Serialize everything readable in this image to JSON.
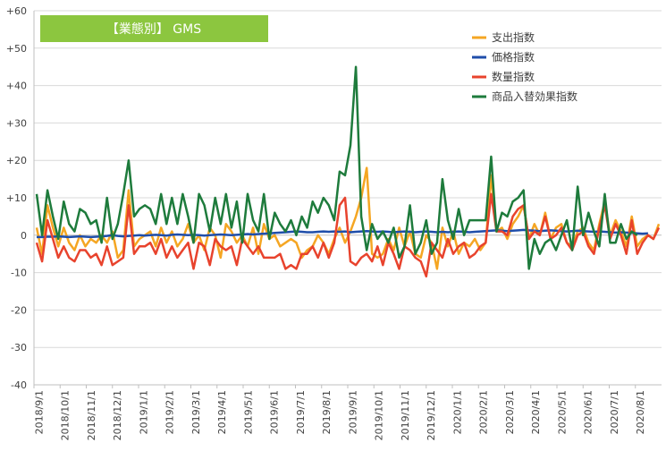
{
  "chart_data": {
    "type": "line",
    "title": "【業態別】 GMS",
    "title_bg_color": "#8CC63F",
    "ylim": [
      -40,
      60
    ],
    "ytick_step": 10,
    "y_tick_labels": [
      "-40",
      "-30",
      "-20",
      "-10",
      "0",
      "+10",
      "+20",
      "+30",
      "+40",
      "+50",
      "+60"
    ],
    "grid": "horizontal",
    "legend_position": "top-right",
    "x_tick_labels": [
      "2018/9/1",
      "2018/10/1",
      "2018/11/1",
      "2018/12/1",
      "2019/1/1",
      "2019/2/1",
      "2019/3/1",
      "2019/4/1",
      "2019/5/1",
      "2019/6/1",
      "2019/7/1",
      "2019/8/1",
      "2019/9/1",
      "2019/10/1",
      "2019/11/1",
      "2019/12/1",
      "2020/1/1",
      "2020/2/1",
      "2020/3/1",
      "2020/4/1",
      "2020/5/1",
      "2020/6/1",
      "2020/7/1",
      "2020/8/1"
    ],
    "x_weekly_offsets_note_free": true,
    "series": [
      {
        "name": "支出指数",
        "color": "#F5A623",
        "values": [
          2,
          -5,
          8,
          2,
          -3,
          2,
          -2,
          -4,
          0,
          -3,
          -1,
          -2,
          0,
          -2,
          1,
          -6,
          -4,
          12,
          -3,
          -1,
          0,
          1,
          -3,
          2,
          -2,
          1,
          -3,
          -1,
          3,
          -2,
          0,
          -4,
          2,
          0,
          -6,
          3,
          1,
          -2,
          0,
          -3,
          2,
          -5,
          3,
          -1,
          0,
          -3,
          -2,
          -1,
          -2,
          -6,
          -4,
          -3,
          0,
          -2,
          -5,
          -1,
          2,
          -2,
          1,
          5,
          10,
          18,
          -5,
          -6,
          -5,
          -1,
          -4,
          2,
          -3,
          1,
          -5,
          -6,
          0,
          -2,
          -9,
          2,
          -3,
          1,
          -5,
          -2,
          -3,
          -1,
          -4,
          -2,
          16,
          1,
          2,
          -1,
          3,
          5,
          8,
          -1,
          3,
          0,
          6,
          -1,
          2,
          3,
          -2,
          -3,
          1,
          2,
          -2,
          -4,
          3,
          9,
          0,
          4,
          1,
          -3,
          5,
          -3,
          -1,
          0,
          -1,
          3
        ]
      },
      {
        "name": "価格指数",
        "color": "#1F4EAA",
        "values": [
          -0.5,
          -0.5,
          -0.4,
          -0.4,
          -0.3,
          -0.4,
          -0.5,
          -0.4,
          -0.3,
          -0.4,
          -0.5,
          -0.4,
          -0.3,
          -0.2,
          0,
          -0.2,
          -0.3,
          -0.2,
          -0.1,
          0,
          -0.1,
          0,
          0.1,
          0,
          -0.1,
          0.1,
          0.2,
          0.1,
          0,
          0.1,
          0,
          -0.1,
          0,
          0.1,
          0.2,
          0.1,
          0,
          0.1,
          0.2,
          0.3,
          0.2,
          0.3,
          0.4,
          0.5,
          0.6,
          0.7,
          0.8,
          0.9,
          1,
          0.9,
          0.8,
          0.8,
          0.9,
          1,
          0.9,
          1,
          0.9,
          1,
          0.8,
          0.9,
          1,
          1.1,
          1,
          0.9,
          1,
          0.9,
          0.8,
          0.9,
          1,
          0.9,
          0.8,
          0.9,
          1,
          0.9,
          0.8,
          0.9,
          0.8,
          0.9,
          1,
          0.9,
          0.8,
          0.9,
          1,
          1.1,
          1.2,
          1.3,
          1.2,
          1.1,
          1.2,
          1.3,
          1.4,
          1.3,
          1.2,
          1.1,
          1.2,
          1.3,
          1.2,
          1.1,
          1,
          1.1,
          1.2,
          1.1,
          1,
          0.9,
          1,
          0.9,
          0.8,
          0.7,
          0.8,
          0.7,
          0.6,
          0.5,
          0.4,
          0.5
        ]
      },
      {
        "name": "数量指数",
        "color": "#E8432D",
        "values": [
          -2,
          -7,
          4,
          -1,
          -6,
          -3,
          -6,
          -7,
          -4,
          -4,
          -6,
          -5,
          -8,
          -3,
          -8,
          -7,
          -6,
          8,
          -5,
          -3,
          -3,
          -2,
          -5,
          -1,
          -6,
          -3,
          -6,
          -4,
          -2,
          -9,
          -2,
          -3,
          -8,
          -1,
          -3,
          -4,
          -3,
          -8,
          -1,
          -3,
          -5,
          -3,
          -6,
          -6,
          -6,
          -5,
          -9,
          -8,
          -9,
          -5,
          -5,
          -3,
          -6,
          -2,
          -6,
          -2,
          8,
          10,
          -7,
          -8,
          -6,
          -5,
          -7,
          -3,
          -8,
          -2,
          -5,
          -9,
          -3,
          -4,
          -6,
          -7,
          -11,
          -2,
          -4,
          -6,
          -1,
          -5,
          -3,
          -2,
          -6,
          -5,
          -3,
          -2,
          11,
          1,
          1,
          0,
          5,
          7,
          8,
          -1,
          1,
          0,
          5,
          -1,
          0,
          2,
          -2,
          -4,
          0,
          1,
          -3,
          -5,
          2,
          8,
          -1,
          3,
          0,
          -5,
          4,
          -5,
          -2,
          0,
          -1,
          2
        ]
      },
      {
        "name": "商品入替効果指数",
        "color": "#1E7B3C",
        "values": [
          11,
          0,
          12,
          5,
          -1,
          9,
          3,
          1,
          7,
          6,
          3,
          4,
          -2,
          10,
          -1,
          3,
          11,
          20,
          5,
          7,
          8,
          7,
          3,
          11,
          3,
          10,
          3,
          11,
          5,
          -2,
          11,
          8,
          1,
          10,
          3,
          11,
          2,
          9,
          -2,
          11,
          4,
          1,
          11,
          -1,
          6,
          3,
          1,
          4,
          0,
          5,
          2,
          9,
          6,
          10,
          8,
          4,
          17,
          16,
          24,
          45,
          5,
          -4,
          3,
          -1,
          1,
          -2,
          2,
          -6,
          -3,
          8,
          -5,
          -2,
          4,
          -5,
          -2,
          15,
          4,
          -1,
          7,
          0,
          4,
          4,
          4,
          4,
          21,
          1,
          6,
          5,
          9,
          10,
          12,
          -9,
          -1,
          -5,
          -2,
          -1,
          -4,
          0,
          4,
          -4,
          13,
          0,
          6,
          1,
          -3,
          11,
          -2,
          -2,
          3,
          -1,
          1,
          0
        ]
      }
    ]
  }
}
